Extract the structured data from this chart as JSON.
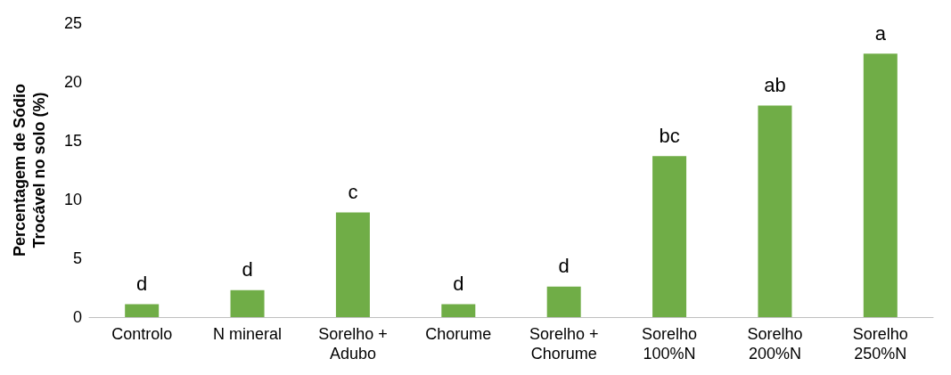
{
  "chart_data": {
    "type": "bar",
    "ylabel": "Percentagem de Sódio\nTrocável no solo (%)",
    "categories": [
      "Controlo",
      "N mineral",
      "Sorelho +\nAdubo",
      "Chorume",
      "Sorelho +\nChorume",
      "Sorelho\n100%N",
      "Sorelho\n200%N",
      "Sorelho\n250%N"
    ],
    "values": [
      1.1,
      2.3,
      8.9,
      1.1,
      2.6,
      13.7,
      18.0,
      22.4
    ],
    "color": "#70ad47",
    "ylim": [
      0,
      25
    ],
    "yticks": [
      0,
      5,
      10,
      15,
      20,
      25
    ],
    "grid": false,
    "annotations": [
      {
        "text": "d",
        "x": "Controlo",
        "y": 1.1
      },
      {
        "text": "d",
        "x": "N mineral",
        "y": 2.3
      },
      {
        "text": "c",
        "x": "Sorelho +\nAdubo",
        "y": 8.9
      },
      {
        "text": "d",
        "x": "Chorume",
        "y": 1.1
      },
      {
        "text": "d",
        "x": "Sorelho +\nChorume",
        "y": 2.6
      },
      {
        "text": "bc",
        "x": "Sorelho\n100%N",
        "y": 13.7
      },
      {
        "text": "ab",
        "x": "Sorelho\n200%N",
        "y": 18.0
      },
      {
        "text": "a",
        "x": "Sorelho\n250%N",
        "y": 22.4
      }
    ]
  }
}
